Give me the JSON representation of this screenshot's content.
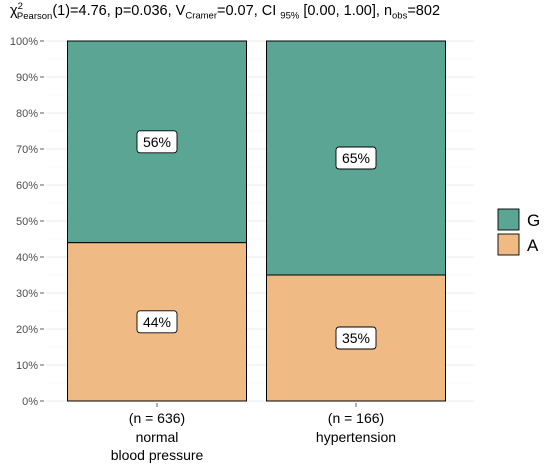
{
  "chart_data": {
    "type": "bar",
    "stacked": true,
    "percent_axis": true,
    "subtitle": {
      "chi": "χ",
      "chi_sup": "2",
      "chi_sub": "Pearson",
      "stat": "(1)=4.76, p=0.036, V",
      "v_sub": "Cramer",
      "v_rest": "=0.07, CI",
      "ci_sub": "95%",
      "ci_rest": "[0.00, 1.00], n",
      "n_sub": "obs",
      "n_rest": "=802"
    },
    "categories": [
      {
        "counts": "(n = 636)",
        "name_lines": [
          "normal",
          "blood pressure"
        ]
      },
      {
        "counts": "(n = 166)",
        "name_lines": [
          "hypertension"
        ]
      }
    ],
    "series": [
      {
        "name": "G",
        "color": "#5ba595",
        "values": [
          56,
          65
        ],
        "labels": [
          "56%",
          "65%"
        ]
      },
      {
        "name": "A",
        "color": "#f0ba85",
        "values": [
          44,
          35
        ],
        "labels": [
          "44%",
          "35%"
        ]
      }
    ],
    "ylim": [
      0,
      100
    ],
    "yticks": [
      "0%",
      "10%",
      "20%",
      "30%",
      "40%",
      "50%",
      "60%",
      "70%",
      "80%",
      "90%",
      "100%"
    ],
    "legend_position": "right",
    "grid": true
  }
}
